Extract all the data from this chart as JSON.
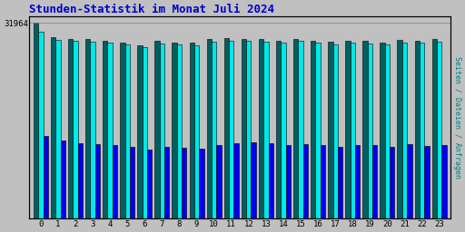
{
  "title": "Stunden-Statistik im Monat Juli 2024",
  "title_color": "#0000cc",
  "title_fontsize": 9,
  "ylabel_right": "Seiten / Dateien / Anfragen",
  "background_color": "#c0c0c0",
  "plot_bg_color": "#c0c0c0",
  "categories": [
    0,
    1,
    2,
    3,
    4,
    5,
    6,
    7,
    8,
    9,
    10,
    11,
    12,
    13,
    14,
    15,
    16,
    17,
    18,
    19,
    20,
    21,
    22,
    23
  ],
  "seiten": [
    31964,
    29600,
    29400,
    29300,
    29100,
    28700,
    28300,
    29000,
    28800,
    28700,
    29300,
    29500,
    29400,
    29300,
    29100,
    29400,
    29100,
    28900,
    29000,
    29000,
    28800,
    29200,
    29000,
    29300
  ],
  "dateien": [
    30500,
    29200,
    29000,
    28900,
    28700,
    28400,
    28000,
    28600,
    28400,
    28300,
    28900,
    29100,
    29100,
    28900,
    28700,
    29000,
    28700,
    28500,
    28700,
    28600,
    28500,
    28800,
    28700,
    28900
  ],
  "anfragen": [
    13500,
    12800,
    12400,
    12200,
    12000,
    11700,
    11300,
    11700,
    11600,
    11500,
    12000,
    12300,
    12500,
    12300,
    12100,
    12200,
    12000,
    11800,
    12000,
    12000,
    11800,
    12200,
    11900,
    12100
  ],
  "bar_width": 0.28,
  "color_seiten": "#006060",
  "color_dateien": "#00e8e8",
  "color_anfragen": "#0000ee",
  "ylim_max": 33000,
  "ytick_val": 31964,
  "ytick_label": "31964"
}
